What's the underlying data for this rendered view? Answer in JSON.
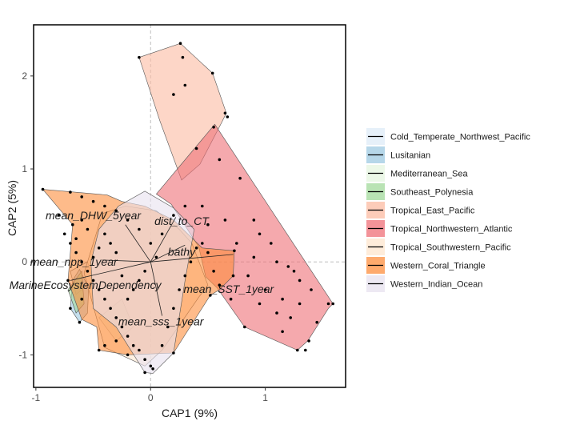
{
  "chart_data": {
    "type": "scatter",
    "title": "",
    "xlabel": "CAP1 (9%)",
    "ylabel": "CAP2 (5%)",
    "xlim": [
      -1.02,
      1.7
    ],
    "ylim": [
      -1.35,
      2.55
    ],
    "xticks": [
      -1,
      0,
      1
    ],
    "yticks": [
      -1,
      0,
      1,
      2
    ],
    "reference_lines": {
      "x": 0,
      "y": 0,
      "style": "dashed"
    },
    "legend_position": "right",
    "regions": [
      {
        "name": "Cold_Temperate_Northwest_Pacific",
        "color": "#deebf7",
        "hull": [
          [
            -0.65,
            -0.35
          ],
          [
            -0.5,
            -0.2
          ],
          [
            -0.55,
            0.0
          ],
          [
            -0.7,
            -0.1
          ]
        ]
      },
      {
        "name": "Lusitanian",
        "color": "#9ecae1",
        "hull": [
          [
            -0.62,
            -0.08
          ],
          [
            -0.54,
            -0.28
          ],
          [
            -0.55,
            -0.55
          ],
          [
            -0.62,
            -0.65
          ],
          [
            -0.7,
            -0.5
          ],
          [
            -0.68,
            -0.2
          ]
        ]
      },
      {
        "name": "Mediterranean_Sea",
        "color": "#e5f5e0",
        "hull": [
          [
            -0.45,
            -0.6
          ],
          [
            -0.3,
            -0.85
          ],
          [
            -0.15,
            -0.7
          ],
          [
            -0.25,
            -0.4
          ]
        ]
      },
      {
        "name": "Southeast_Polynesia",
        "color": "#a1d99b",
        "hull": [
          [
            -0.72,
            -0.3
          ],
          [
            -0.6,
            -0.1
          ],
          [
            -0.58,
            -0.45
          ],
          [
            -0.65,
            -0.55
          ]
        ]
      },
      {
        "name": "Tropical_East_Pacific",
        "color": "#fcbba1",
        "hull": [
          [
            -0.1,
            2.2
          ],
          [
            0.26,
            2.35
          ],
          [
            0.54,
            2.03
          ],
          [
            0.66,
            1.6
          ],
          [
            0.62,
            1.5
          ],
          [
            0.43,
            1.05
          ],
          [
            0.27,
            0.88
          ],
          [
            0.08,
            1.52
          ]
        ]
      },
      {
        "name": "Tropical_Northwestern_Atlantic",
        "color": "#ef6f77",
        "hull": [
          [
            0.56,
            1.48
          ],
          [
            1.59,
            -0.45
          ],
          [
            1.55,
            -0.5
          ],
          [
            1.37,
            -0.85
          ],
          [
            1.28,
            -0.95
          ],
          [
            0.82,
            -0.7
          ],
          [
            0.58,
            -0.28
          ],
          [
            0.48,
            -0.16
          ],
          [
            0.42,
            0.16
          ],
          [
            0.18,
            0.62
          ],
          [
            0.05,
            0.73
          ]
        ]
      },
      {
        "name": "Tropical_Southwestern_Pacific",
        "color": "#fee6ce",
        "hull": [
          [
            -0.42,
            0.52
          ],
          [
            -0.22,
            0.6
          ],
          [
            0.05,
            0.55
          ],
          [
            0.25,
            0.35
          ],
          [
            0.36,
            0.2
          ],
          [
            0.5,
            -0.25
          ],
          [
            0.42,
            -0.38
          ],
          [
            0.1,
            -0.95
          ],
          [
            -0.05,
            -1.12
          ],
          [
            -0.4,
            -0.92
          ],
          [
            -0.58,
            -0.12
          ]
        ]
      },
      {
        "name": "Western_Coral_Triangle",
        "color": "#fd8d3c",
        "hull": [
          [
            -0.94,
            0.78
          ],
          [
            -0.38,
            0.72
          ],
          [
            -0.25,
            0.65
          ],
          [
            -0.05,
            0.6
          ],
          [
            0.2,
            0.45
          ],
          [
            0.45,
            0.15
          ],
          [
            0.73,
            0.12
          ],
          [
            0.72,
            -0.15
          ],
          [
            0.6,
            -0.3
          ],
          [
            0.52,
            -0.36
          ],
          [
            0.2,
            -0.98
          ],
          [
            -0.2,
            -1.0
          ],
          [
            -0.45,
            -0.95
          ],
          [
            -0.47,
            -0.7
          ],
          [
            -0.6,
            -0.62
          ],
          [
            -0.72,
            -0.2
          ],
          [
            -0.68,
            0.4
          ]
        ]
      },
      {
        "name": "Western_Indian_Ocean",
        "color": "#e7e1ef",
        "hull": [
          [
            -0.28,
            0.6
          ],
          [
            -0.05,
            0.76
          ],
          [
            0.2,
            0.58
          ],
          [
            0.38,
            0.35
          ],
          [
            0.3,
            -0.2
          ],
          [
            0.2,
            -0.98
          ],
          [
            0.02,
            -1.2
          ],
          [
            -0.05,
            -1.19
          ],
          [
            -0.3,
            -0.7
          ],
          [
            -0.5,
            -0.5
          ],
          [
            -0.52,
            0.0
          ],
          [
            -0.45,
            0.35
          ]
        ]
      }
    ],
    "vectors": [
      {
        "label": "mean_DHW_5year",
        "x": -0.22,
        "y": 0.4
      },
      {
        "label": "dist_to_CT",
        "x": 0.22,
        "y": 0.48
      },
      {
        "label": "bathy",
        "x": 0.3,
        "y": 0.18
      },
      {
        "label": "mean_npp_1year",
        "x": -0.42,
        "y": 0.02
      },
      {
        "label": "MarineEcosystemDependency",
        "x": -0.7,
        "y": -0.2
      },
      {
        "label": "mean_SST_1year",
        "x": 0.72,
        "y": 0.08
      },
      {
        "label": "mean_sss_1year",
        "x": 0.1,
        "y": -0.58
      }
    ],
    "vector_labels": [
      {
        "text": "mean_DHW_5year",
        "x": -0.5,
        "y": 0.5
      },
      {
        "text": "dist_to_CT",
        "x": 0.27,
        "y": 0.44
      },
      {
        "text": "bathy",
        "x": 0.27,
        "y": 0.11
      },
      {
        "text": "mean_npp_1year",
        "x": -0.67,
        "y": 0.0
      },
      {
        "text": "MarineEcosystemDependency",
        "x": -0.57,
        "y": -0.25
      },
      {
        "text": "mean_SST_1year",
        "x": 0.68,
        "y": -0.29
      },
      {
        "text": "mean_sss_1year",
        "x": 0.09,
        "y": -0.64
      }
    ],
    "points": [
      [
        -0.1,
        2.2
      ],
      [
        0.26,
        2.35
      ],
      [
        0.28,
        2.2
      ],
      [
        0.54,
        2.03
      ],
      [
        0.65,
        1.6
      ],
      [
        0.67,
        1.56
      ],
      [
        0.55,
        1.45
      ],
      [
        0.4,
        1.22
      ],
      [
        0.2,
        1.8
      ],
      [
        0.3,
        1.9
      ],
      [
        0.6,
        1.1
      ],
      [
        0.78,
        0.9
      ],
      [
        0.9,
        0.45
      ],
      [
        0.95,
        0.3
      ],
      [
        1.05,
        0.2
      ],
      [
        1.1,
        0.0
      ],
      [
        1.2,
        -0.05
      ],
      [
        1.3,
        -0.2
      ],
      [
        1.4,
        -0.3
      ],
      [
        1.55,
        -0.45
      ],
      [
        1.59,
        -0.45
      ],
      [
        1.45,
        -0.65
      ],
      [
        1.38,
        -0.85
      ],
      [
        1.35,
        -0.95
      ],
      [
        1.28,
        -0.95
      ],
      [
        1.1,
        -0.55
      ],
      [
        0.95,
        -0.45
      ],
      [
        0.82,
        -0.7
      ],
      [
        0.7,
        -0.4
      ],
      [
        0.6,
        -0.25
      ],
      [
        0.55,
        -0.1
      ],
      [
        0.5,
        0.1
      ],
      [
        0.85,
        -0.15
      ],
      [
        1.0,
        -0.3
      ],
      [
        1.15,
        -0.4
      ],
      [
        1.22,
        -0.6
      ],
      [
        0.75,
        0.2
      ],
      [
        0.9,
        0.05
      ],
      [
        1.25,
        -0.1
      ],
      [
        0.65,
        0.45
      ],
      [
        0.3,
        0.6
      ],
      [
        0.2,
        0.5
      ],
      [
        0.1,
        0.3
      ],
      [
        0.0,
        0.2
      ],
      [
        -0.1,
        0.35
      ],
      [
        -0.2,
        0.45
      ],
      [
        -0.3,
        0.55
      ],
      [
        -0.4,
        0.6
      ],
      [
        -0.5,
        0.65
      ],
      [
        -0.6,
        0.7
      ],
      [
        -0.7,
        0.75
      ],
      [
        -0.94,
        0.78
      ],
      [
        -0.8,
        0.5
      ],
      [
        -0.75,
        0.3
      ],
      [
        -0.7,
        0.2
      ],
      [
        -0.65,
        0.1
      ],
      [
        -0.6,
        0.0
      ],
      [
        -0.55,
        -0.1
      ],
      [
        -0.5,
        -0.2
      ],
      [
        -0.45,
        -0.3
      ],
      [
        -0.4,
        -0.4
      ],
      [
        -0.35,
        -0.5
      ],
      [
        -0.3,
        -0.6
      ],
      [
        -0.25,
        -0.7
      ],
      [
        -0.2,
        -0.8
      ],
      [
        -0.15,
        -0.9
      ],
      [
        -0.1,
        -0.95
      ],
      [
        -0.05,
        -1.05
      ],
      [
        0.0,
        -1.12
      ],
      [
        -0.05,
        -1.19
      ],
      [
        0.02,
        -1.15
      ],
      [
        0.1,
        -0.9
      ],
      [
        0.15,
        -0.7
      ],
      [
        0.2,
        -0.5
      ],
      [
        0.25,
        -0.3
      ],
      [
        0.3,
        -0.15
      ],
      [
        0.35,
        0.0
      ],
      [
        0.4,
        0.15
      ],
      [
        0.45,
        0.2
      ],
      [
        0.05,
        0.05
      ],
      [
        -0.05,
        -0.1
      ],
      [
        -0.1,
        -0.2
      ],
      [
        -0.15,
        -0.3
      ],
      [
        -0.2,
        -0.4
      ],
      [
        -0.25,
        -0.15
      ],
      [
        -0.3,
        0.1
      ],
      [
        -0.35,
        0.2
      ],
      [
        -0.4,
        0.3
      ],
      [
        -0.45,
        0.15
      ],
      [
        -0.5,
        0.05
      ],
      [
        -0.55,
        0.35
      ],
      [
        -0.6,
        0.45
      ],
      [
        -0.65,
        0.25
      ],
      [
        -0.68,
        0.4
      ],
      [
        -0.72,
        -0.2
      ],
      [
        -0.7,
        -0.5
      ],
      [
        -0.62,
        -0.65
      ],
      [
        -0.6,
        -0.4
      ],
      [
        -0.45,
        -0.95
      ],
      [
        -0.4,
        -0.9
      ],
      [
        -0.3,
        -0.85
      ],
      [
        -0.2,
        -1.0
      ],
      [
        0.2,
        -0.98
      ],
      [
        0.52,
        -0.36
      ],
      [
        0.72,
        -0.15
      ],
      [
        0.73,
        0.12
      ],
      [
        0.45,
        0.6
      ],
      [
        0.5,
        0.4
      ],
      [
        1.15,
        -0.75
      ],
      [
        1.3,
        -0.45
      ]
    ]
  }
}
